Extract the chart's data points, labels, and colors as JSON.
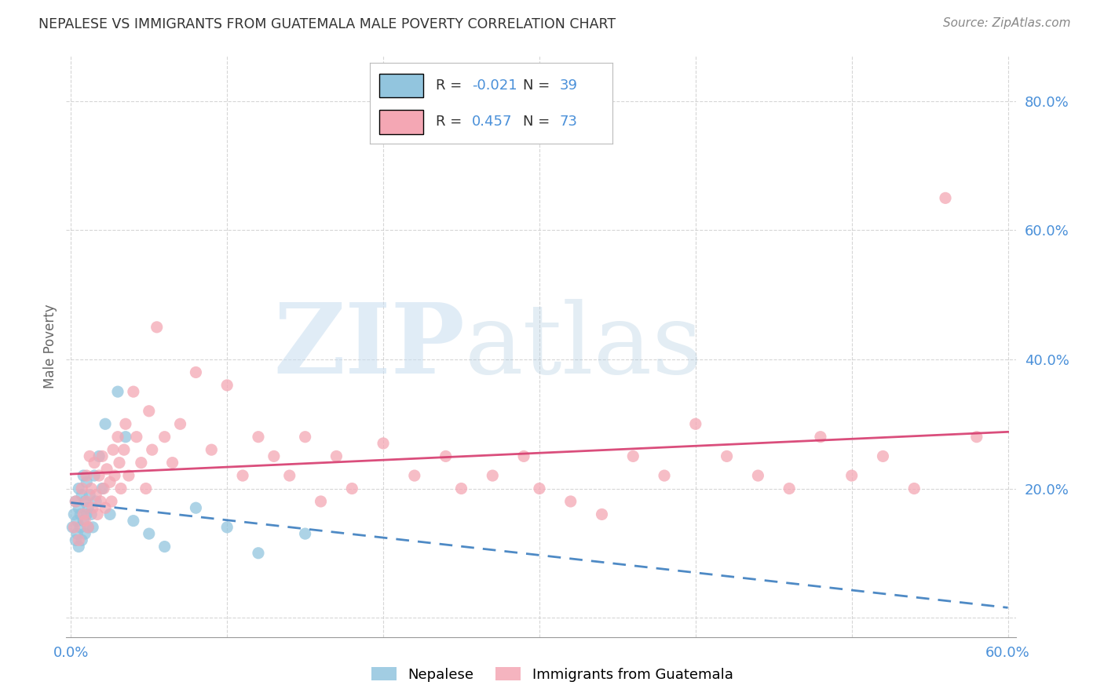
{
  "title": "NEPALESE VS IMMIGRANTS FROM GUATEMALA MALE POVERTY CORRELATION CHART",
  "source": "Source: ZipAtlas.com",
  "ylabel": "Male Poverty",
  "xlim": [
    0.0,
    0.6
  ],
  "ylim": [
    -0.03,
    0.87
  ],
  "xtick_positions": [
    0.0,
    0.1,
    0.2,
    0.3,
    0.4,
    0.5,
    0.6
  ],
  "xtick_labels": [
    "0.0%",
    "",
    "",
    "",
    "",
    "",
    "60.0%"
  ],
  "ytick_positions": [
    0.0,
    0.2,
    0.4,
    0.6,
    0.8
  ],
  "ytick_labels": [
    "",
    "20.0%",
    "40.0%",
    "60.0%",
    "80.0%"
  ],
  "nepalese_color": "#92c5de",
  "guatemala_color": "#f4a7b4",
  "nepalese_line_color": "#3b7dbf",
  "guatemala_line_color": "#d63b6e",
  "tick_color": "#4a90d9",
  "grid_color": "#cccccc",
  "R_nepalese": "-0.021",
  "N_nepalese": "39",
  "R_guatemala": "0.457",
  "N_guatemala": "73",
  "legend_label_nepalese": "Nepalese",
  "legend_label_guatemala": "Immigrants from Guatemala",
  "nepalese_x": [
    0.001,
    0.002,
    0.003,
    0.003,
    0.004,
    0.004,
    0.005,
    0.005,
    0.005,
    0.006,
    0.006,
    0.007,
    0.007,
    0.008,
    0.008,
    0.009,
    0.009,
    0.01,
    0.01,
    0.011,
    0.011,
    0.012,
    0.013,
    0.014,
    0.015,
    0.016,
    0.018,
    0.02,
    0.022,
    0.025,
    0.03,
    0.035,
    0.04,
    0.05,
    0.06,
    0.08,
    0.1,
    0.12,
    0.15
  ],
  "nepalese_y": [
    0.14,
    0.16,
    0.18,
    0.12,
    0.15,
    0.13,
    0.17,
    0.11,
    0.2,
    0.16,
    0.14,
    0.19,
    0.12,
    0.22,
    0.15,
    0.18,
    0.13,
    0.21,
    0.16,
    0.14,
    0.17,
    0.19,
    0.16,
    0.14,
    0.22,
    0.18,
    0.25,
    0.2,
    0.3,
    0.16,
    0.35,
    0.28,
    0.15,
    0.13,
    0.11,
    0.17,
    0.14,
    0.1,
    0.13
  ],
  "guatemala_x": [
    0.002,
    0.003,
    0.005,
    0.007,
    0.008,
    0.009,
    0.01,
    0.01,
    0.011,
    0.012,
    0.013,
    0.014,
    0.015,
    0.016,
    0.017,
    0.018,
    0.019,
    0.02,
    0.021,
    0.022,
    0.023,
    0.025,
    0.026,
    0.027,
    0.028,
    0.03,
    0.031,
    0.032,
    0.034,
    0.035,
    0.037,
    0.04,
    0.042,
    0.045,
    0.048,
    0.05,
    0.052,
    0.055,
    0.06,
    0.065,
    0.07,
    0.08,
    0.09,
    0.1,
    0.11,
    0.12,
    0.13,
    0.14,
    0.15,
    0.16,
    0.17,
    0.18,
    0.2,
    0.22,
    0.24,
    0.25,
    0.27,
    0.29,
    0.3,
    0.32,
    0.34,
    0.36,
    0.38,
    0.4,
    0.42,
    0.44,
    0.46,
    0.48,
    0.5,
    0.52,
    0.54,
    0.56,
    0.58
  ],
  "guatemala_y": [
    0.14,
    0.18,
    0.12,
    0.2,
    0.16,
    0.15,
    0.22,
    0.18,
    0.14,
    0.25,
    0.2,
    0.17,
    0.24,
    0.19,
    0.16,
    0.22,
    0.18,
    0.25,
    0.2,
    0.17,
    0.23,
    0.21,
    0.18,
    0.26,
    0.22,
    0.28,
    0.24,
    0.2,
    0.26,
    0.3,
    0.22,
    0.35,
    0.28,
    0.24,
    0.2,
    0.32,
    0.26,
    0.45,
    0.28,
    0.24,
    0.3,
    0.38,
    0.26,
    0.36,
    0.22,
    0.28,
    0.25,
    0.22,
    0.28,
    0.18,
    0.25,
    0.2,
    0.27,
    0.22,
    0.25,
    0.2,
    0.22,
    0.25,
    0.2,
    0.18,
    0.16,
    0.25,
    0.22,
    0.3,
    0.25,
    0.22,
    0.2,
    0.28,
    0.22,
    0.25,
    0.2,
    0.65,
    0.28
  ]
}
